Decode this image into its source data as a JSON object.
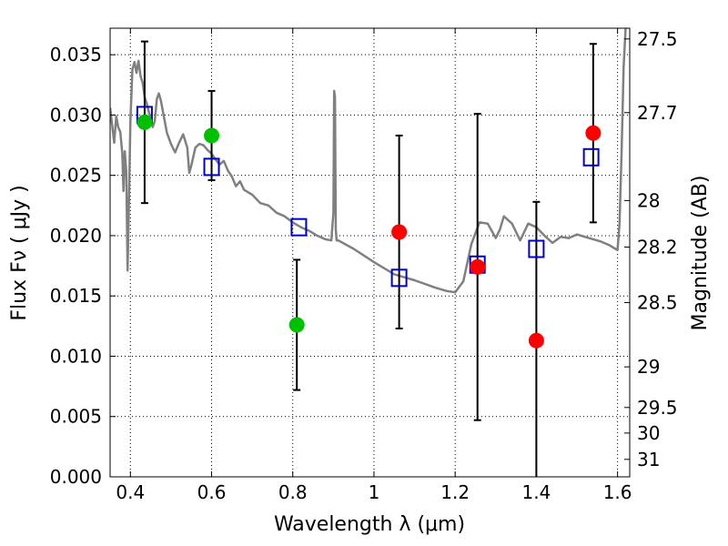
{
  "chart_data": {
    "type": "scatter",
    "xlabel": "Wavelength  λ (μm)",
    "ylabel": "Flux  Fν  ( μJy )",
    "y2label": "Magnitude (AB)",
    "xlim": [
      0.35,
      1.63
    ],
    "ylim": [
      0.0,
      0.0372
    ],
    "grid": true,
    "x_ticks": [
      0.4,
      0.6,
      0.8,
      1.0,
      1.2,
      1.4,
      1.6
    ],
    "x_tick_labels": [
      "0.4",
      "0.6",
      "0.8",
      "1",
      "1.2",
      "1.4",
      "1.6"
    ],
    "y_ticks": [
      0.0,
      0.005,
      0.01,
      0.015,
      0.02,
      0.025,
      0.03,
      0.035
    ],
    "y_tick_labels": [
      "0.000",
      "0.005",
      "0.010",
      "0.015",
      "0.020",
      "0.025",
      "0.030",
      "0.035"
    ],
    "y2_ticks": [
      {
        "label": "27.5",
        "flux": 0.03631
      },
      {
        "label": "27.7",
        "flux": 0.0302
      },
      {
        "label": "28",
        "flux": 0.02291
      },
      {
        "label": "28.2",
        "flux": 0.01905
      },
      {
        "label": "28.5",
        "flux": 0.01445
      },
      {
        "label": "29",
        "flux": 0.00912
      },
      {
        "label": "29.5",
        "flux": 0.00575
      },
      {
        "label": "30",
        "flux": 0.00363
      },
      {
        "label": "31",
        "flux": 0.00145
      }
    ],
    "model_spectrum": {
      "color": "#808080",
      "x": [
        0.35,
        0.355,
        0.36,
        0.365,
        0.37,
        0.375,
        0.38,
        0.383,
        0.386,
        0.39,
        0.393,
        0.397,
        0.4,
        0.405,
        0.41,
        0.415,
        0.42,
        0.425,
        0.43,
        0.435,
        0.44,
        0.445,
        0.45,
        0.455,
        0.46,
        0.465,
        0.47,
        0.475,
        0.48,
        0.49,
        0.5,
        0.51,
        0.52,
        0.53,
        0.54,
        0.545,
        0.55,
        0.56,
        0.57,
        0.58,
        0.59,
        0.6,
        0.61,
        0.62,
        0.63,
        0.64,
        0.65,
        0.66,
        0.67,
        0.68,
        0.7,
        0.72,
        0.74,
        0.76,
        0.78,
        0.8,
        0.82,
        0.84,
        0.86,
        0.88,
        0.895,
        0.9,
        0.902,
        0.904,
        0.906,
        0.908,
        0.912,
        0.95,
        1.0,
        1.05,
        1.1,
        1.15,
        1.18,
        1.2,
        1.22,
        1.24,
        1.26,
        1.28,
        1.3,
        1.31,
        1.32,
        1.34,
        1.36,
        1.38,
        1.4,
        1.42,
        1.44,
        1.46,
        1.48,
        1.5,
        1.52,
        1.54,
        1.56,
        1.58,
        1.595,
        1.6,
        1.605,
        1.61,
        1.615,
        1.62
      ],
      "y": [
        0.0306,
        0.0292,
        0.0277,
        0.0299,
        0.029,
        0.0286,
        0.0268,
        0.0237,
        0.027,
        0.0253,
        0.0171,
        0.024,
        0.0295,
        0.0338,
        0.0344,
        0.0335,
        0.0345,
        0.0332,
        0.0327,
        0.0315,
        0.031,
        0.0303,
        0.0296,
        0.029,
        0.0295,
        0.0313,
        0.0318,
        0.0312,
        0.0303,
        0.0285,
        0.0276,
        0.0269,
        0.0277,
        0.0284,
        0.0273,
        0.0252,
        0.0258,
        0.0273,
        0.0276,
        0.0275,
        0.0271,
        0.0268,
        0.0263,
        0.0259,
        0.0262,
        0.0254,
        0.0249,
        0.0241,
        0.0245,
        0.0238,
        0.0234,
        0.0227,
        0.0225,
        0.0219,
        0.0216,
        0.0211,
        0.0207,
        0.0204,
        0.02,
        0.0197,
        0.0196,
        0.0219,
        0.032,
        0.0315,
        0.0205,
        0.0196,
        0.0196,
        0.0189,
        0.0178,
        0.0168,
        0.0163,
        0.0157,
        0.0154,
        0.0153,
        0.0162,
        0.0193,
        0.0211,
        0.021,
        0.0198,
        0.0205,
        0.0216,
        0.021,
        0.0196,
        0.021,
        0.0207,
        0.02,
        0.0194,
        0.0199,
        0.0198,
        0.0201,
        0.0199,
        0.0197,
        0.0195,
        0.0192,
        0.0189,
        0.0188,
        0.021,
        0.027,
        0.034,
        0.0372
      ]
    },
    "model_magnitudes": {
      "marker": "open-square",
      "color": "#0000cc",
      "x": [
        0.435,
        0.6,
        0.815,
        1.062,
        1.255,
        1.4,
        1.535
      ],
      "y": [
        0.03,
        0.0257,
        0.0207,
        0.0165,
        0.0176,
        0.0189,
        0.0265
      ]
    },
    "detections": {
      "marker": "filled-circle",
      "color": "#00c000",
      "x": [
        0.435,
        0.6,
        0.81
      ],
      "y": [
        0.0294,
        0.0283,
        0.0126
      ],
      "yerr": [
        0.0067,
        0.0037,
        0.0054
      ]
    },
    "upper_limits": {
      "marker": "filled-circle",
      "color": "#ff0000",
      "x": [
        1.062,
        1.255,
        1.4,
        1.54
      ],
      "y": [
        0.0203,
        0.0174,
        0.0113,
        0.0285
      ],
      "yerr": [
        0.008,
        0.0127,
        0.0115,
        0.0074
      ]
    }
  }
}
